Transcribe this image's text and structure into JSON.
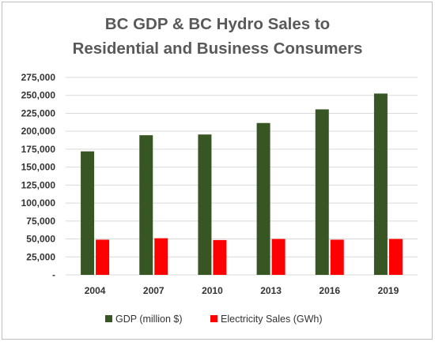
{
  "chart_data": {
    "type": "bar",
    "title_line1": "BC GDP & BC Hydro Sales to",
    "title_line2": "Residential and Business Consumers",
    "categories": [
      "2004",
      "2007",
      "2010",
      "2013",
      "2016",
      "2019"
    ],
    "series": [
      {
        "name": "GDP (million $)",
        "color": "#375623",
        "values": [
          172000,
          194500,
          195500,
          211500,
          230500,
          252500
        ]
      },
      {
        "name": "Electricity Sales (GWh)",
        "color": "#ff0000",
        "values": [
          49000,
          51000,
          48500,
          50000,
          49000,
          50000
        ]
      }
    ],
    "ylim": [
      0,
      275000
    ],
    "yticks": [
      {
        "value": 0,
        "label": "-"
      },
      {
        "value": 25000,
        "label": "25,000"
      },
      {
        "value": 50000,
        "label": "50,000"
      },
      {
        "value": 75000,
        "label": "75,000"
      },
      {
        "value": 100000,
        "label": "100,000"
      },
      {
        "value": 125000,
        "label": "125,000"
      },
      {
        "value": 150000,
        "label": "150,000"
      },
      {
        "value": 175000,
        "label": "175,000"
      },
      {
        "value": 200000,
        "label": "200,000"
      },
      {
        "value": 225000,
        "label": "225,000"
      },
      {
        "value": 250000,
        "label": "250,000"
      },
      {
        "value": 275000,
        "label": "275,000"
      }
    ],
    "grid": true,
    "legend_position": "bottom"
  }
}
